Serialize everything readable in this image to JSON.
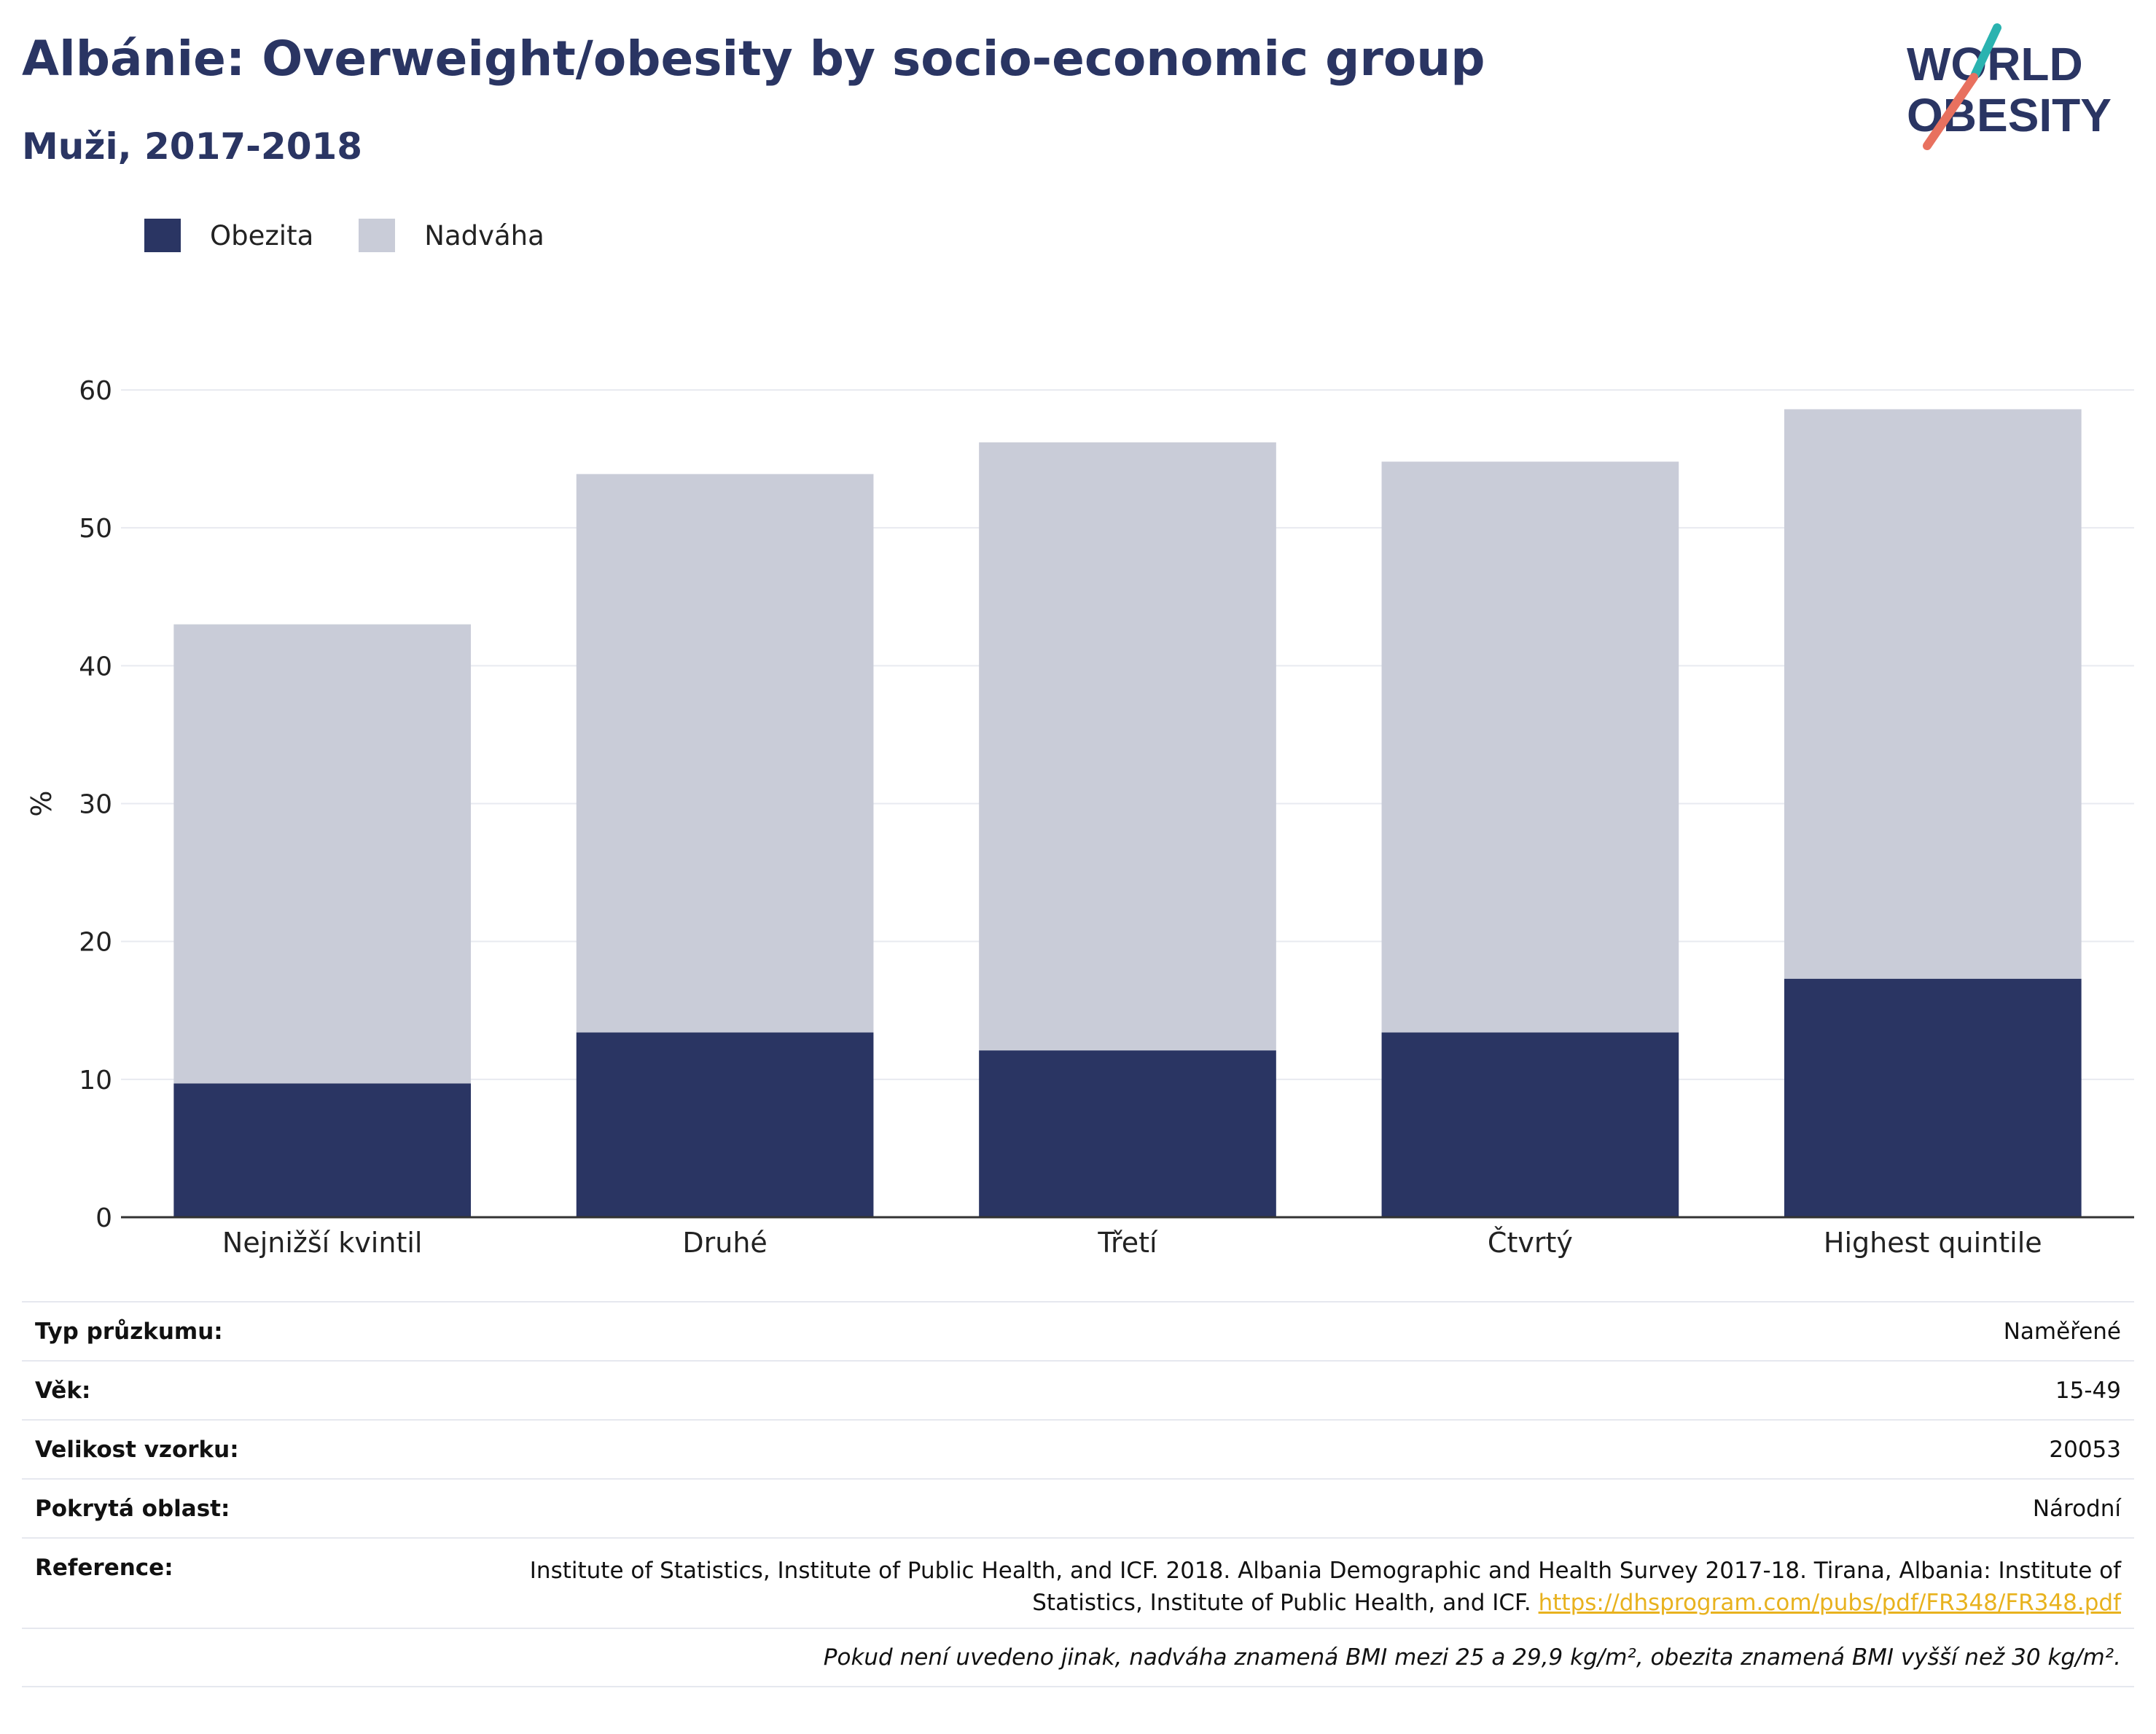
{
  "title": "Albánie: Overweight/obesity by socio-economic group",
  "subtitle": "Muži, 2017-2018",
  "logo": {
    "line1": "WORLD",
    "line2": "OBESITY",
    "accent_teal": "#2ab3b0",
    "accent_coral": "#e8715f"
  },
  "colors": {
    "obesity": "#2a3563",
    "overweight": "#c9ccd8",
    "grid": "#e8eaf0",
    "axis": "#333333"
  },
  "legend": {
    "obesity": "Obezita",
    "overweight": "Nadváha"
  },
  "chart_data": {
    "type": "bar",
    "stacked": true,
    "categories": [
      "Nejnižší kvintil",
      "Druhé",
      "Třetí",
      "Čtvrtý",
      "Highest quintile"
    ],
    "series": [
      {
        "name": "Obezita",
        "values": [
          9.7,
          13.4,
          12.1,
          13.4,
          17.3
        ]
      },
      {
        "name": "Nadváha",
        "values": [
          33.3,
          40.5,
          44.1,
          41.4,
          41.3
        ]
      }
    ],
    "ylabel": "%",
    "ylim": [
      0,
      60
    ],
    "yticks": [
      0,
      10,
      20,
      30,
      40,
      50,
      60
    ],
    "grid": true,
    "legend_position": "top-left"
  },
  "info": {
    "survey_type_label": "Typ průzkumu:",
    "survey_type_value": "Naměřené",
    "age_label": "Věk:",
    "age_value": "15-49",
    "sample_label": "Velikost vzorku:",
    "sample_value": "20053",
    "area_label": "Pokrytá oblast:",
    "area_value": "Národní",
    "reference_label": "Reference:",
    "reference_text": "Institute of Statistics, Institute of Public Health, and ICF. 2018. Albania Demographic and Health Survey 2017-18. Tirana, Albania: Institute of Statistics, Institute of Public Health, and ICF.",
    "reference_link": "https://dhsprogram.com/pubs/pdf/FR348/FR348.pdf",
    "note": "Pokud není uvedeno jinak, nadváha znamená BMI mezi 25 a 29,9 kg/m², obezita znamená BMI vyšší než 30 kg/m²."
  }
}
